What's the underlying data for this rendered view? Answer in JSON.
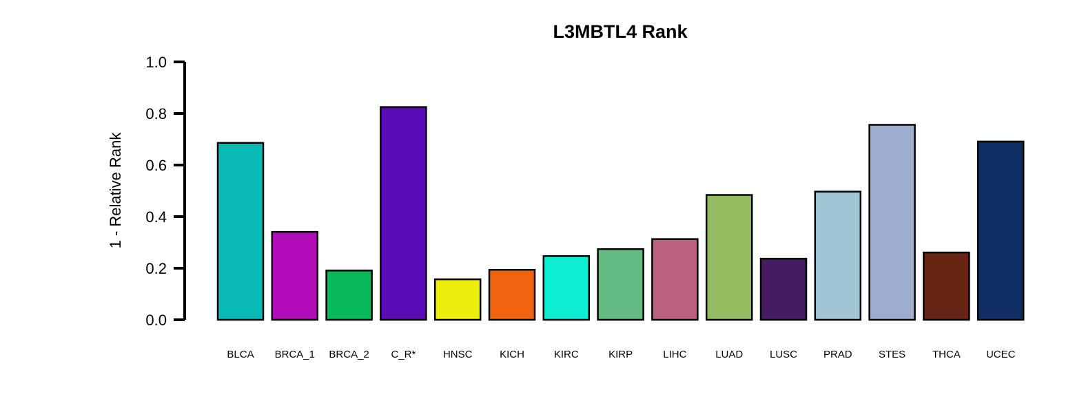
{
  "chart_data": {
    "type": "bar",
    "title": "L3MBTL4 Rank",
    "ylabel": "1 - Relative Rank",
    "xlabel": "",
    "ylim": [
      0,
      1.0
    ],
    "yticks": [
      "0.0",
      "0.2",
      "0.4",
      "0.6",
      "0.8",
      "1.0"
    ],
    "grid": false,
    "categories": [
      "BLCA",
      "BRCA_1",
      "BRCA_2",
      "C_R*",
      "HNSC",
      "KICH",
      "KIRC",
      "KIRP",
      "LIHC",
      "LUAD",
      "LUSC",
      "PRAD",
      "STES",
      "THCA",
      "UCEC"
    ],
    "values": [
      0.686,
      0.341,
      0.191,
      0.825,
      0.157,
      0.194,
      0.247,
      0.274,
      0.313,
      0.484,
      0.237,
      0.497,
      0.756,
      0.261,
      0.691
    ],
    "colors": [
      "#0ABAB5",
      "#B20CB9",
      "#08B95B",
      "#5C0BB9",
      "#EEEE0C",
      "#F26310",
      "#0EEED3",
      "#62BB80",
      "#BC617E",
      "#96BC62",
      "#471B61",
      "#A0C5D3",
      "#9EADD0",
      "#672513",
      "#0F2F64"
    ]
  }
}
